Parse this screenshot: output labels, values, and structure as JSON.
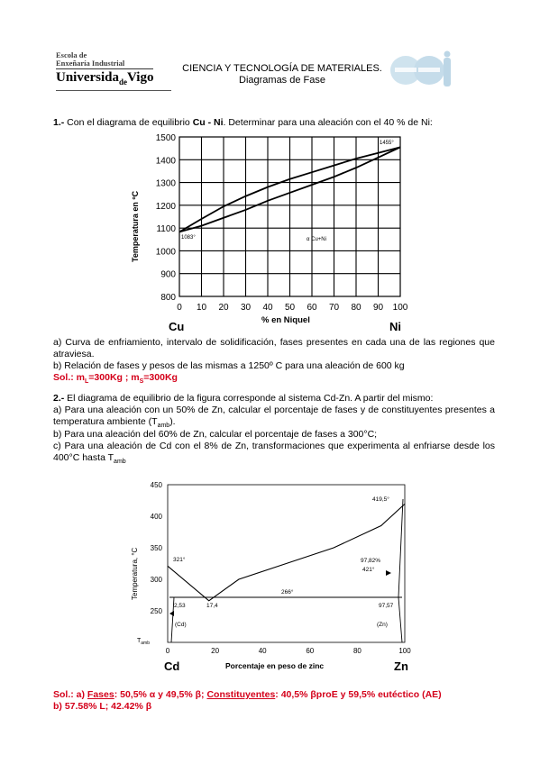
{
  "header": {
    "logo_line1": "Escola de",
    "logo_line2": "Enxeñaría Industrial",
    "logo_univ_a": "Universida",
    "logo_univ_de": "de",
    "logo_univ_b": "Vigo",
    "title": "CIENCIA Y TECNOLOGÍA DE MATERIALES.",
    "subtitle": "Diagramas de Fase",
    "right_logo": "eei"
  },
  "p1": {
    "num": "1.-",
    "intro_a": " Con el diagrama de equilibrio ",
    "intro_bold": "Cu - Ni",
    "intro_b": ". Determinar para una aleación con el 40 % de Ni:",
    "q_a": "a) Curva de enfriamiento, intervalo de solidificación, fases presentes en cada una de las regiones que atraviesa.",
    "q_b": "b) Relación de fases y pesos de las mismas a 1250º C para una aleación de 600 kg",
    "sol_label": "Sol.: m",
    "sol_sub1": "L",
    "sol_mid": "=300Kg ; m",
    "sol_sub2": "S",
    "sol_end": "=300Kg"
  },
  "chart1": {
    "type": "line",
    "ylabel": "Temperatura en ºC",
    "xlabel": "% en Niquel",
    "left_element": "Cu",
    "right_element": "Ni",
    "yticks": [
      "1500",
      "1400",
      "1300",
      "1200",
      "1100",
      "1000",
      "900",
      "800"
    ],
    "xticks": [
      "0",
      "10",
      "20",
      "30",
      "40",
      "50",
      "60",
      "70",
      "80",
      "90",
      "100"
    ],
    "ylim": [
      800,
      1500
    ],
    "xlim": [
      0,
      100
    ],
    "annot_left": "1083°",
    "annot_right": "1455°",
    "annot_mid": "α Cu+Ni",
    "series": [
      {
        "name": "",
        "x": [
          0,
          10,
          20,
          30,
          40,
          50,
          60,
          70,
          80,
          90,
          100
        ],
        "y": [
          1083,
          1140,
          1195,
          1240,
          1280,
          1315,
          1345,
          1375,
          1405,
          1430,
          1455
        ]
      },
      {
        "name": "",
        "x": [
          0,
          10,
          20,
          30,
          40,
          50,
          60,
          70,
          80,
          90,
          100
        ],
        "y": [
          1083,
          1110,
          1145,
          1180,
          1220,
          1255,
          1290,
          1325,
          1365,
          1410,
          1455
        ]
      }
    ]
  },
  "p2": {
    "num": "2.-",
    "intro": " El diagrama de equilibrio de la figura corresponde al sistema Cd-Zn. A partir del mismo:",
    "q_a": "a) Para una aleación con un 50% de Zn, calcular el porcentaje de fases y de constituyentes presentes a temperatura ambiente (T",
    "q_a_sub": "amb",
    "q_a_end": ").",
    "q_b": "b) Para una aleación del 60% de Zn, calcular el porcentaje de fases a 300°C;",
    "q_c": "c) Para una aleación de Cd con el 8% de Zn, transformaciones que experimenta al enfriarse desde los 400°C hasta  T",
    "q_c_sub": "amb",
    "sol_a_label": "Sol.: a) ",
    "sol_a_fases": "Fases",
    "sol_a_1": ": 50,5% α  y 49,5% β; ",
    "sol_a_const": "Constituyentes",
    "sol_a_2": ": 40,5% βproE y 59,5% eutéctico (AE)",
    "sol_b": "b)  57.58% L; 42.42% β"
  },
  "chart2": {
    "type": "line",
    "ylabel": "Temperatura, °C",
    "xlabel": "Porcentaje en peso de zinc",
    "left_element": "Cd",
    "right_element": "Zn",
    "yticks": [
      "450",
      "400",
      "350",
      "300",
      "250"
    ],
    "tamb_label": "T",
    "tamb_sub": "amb",
    "xticks": [
      "0",
      "20",
      "40",
      "60",
      "80",
      "100"
    ],
    "ylim": [
      200,
      450
    ],
    "xlim": [
      0,
      100
    ],
    "annot_cd_mp": "321°",
    "annot_zn_mp": "419,5°",
    "annot_eut_temp": "266°",
    "annot_left_sol": "2,53",
    "annot_eut_comp": "17,4",
    "annot_right_sol": "97,57",
    "annot_right_liq": "97,82%",
    "annot_right_liq_t": "421°",
    "annot_left_phase": "(Cd)",
    "annot_right_phase": "(Zn)",
    "series": [
      {
        "name": "",
        "x": [
          0,
          17.4,
          30,
          50,
          70,
          90,
          100
        ],
        "y": [
          321,
          266,
          300,
          325,
          350,
          385,
          419.5
        ]
      }
    ]
  }
}
